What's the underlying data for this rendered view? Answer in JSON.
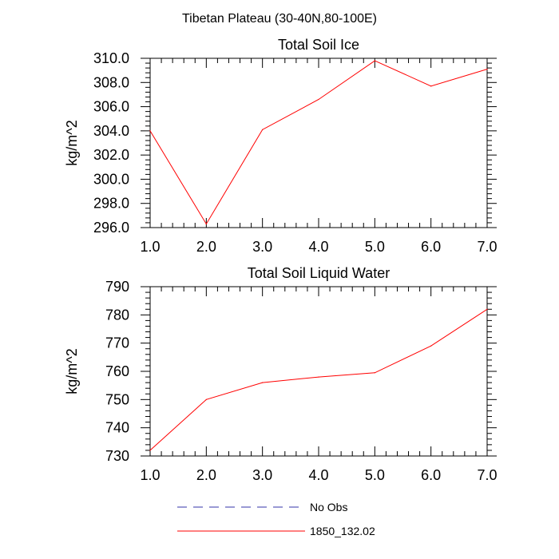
{
  "figure_title": "Tibetan Plateau (30-40N,80-100E)",
  "colors": {
    "model_line": "#ff0000",
    "obs_line": "#3333aa",
    "axis": "#000000"
  },
  "legend": {
    "entries": [
      {
        "label": "No Obs",
        "style": "dashed",
        "color": "#3333aa"
      },
      {
        "label": "1850_132.02",
        "style": "solid",
        "color": "#ff0000"
      }
    ]
  },
  "chart_data": [
    {
      "type": "line",
      "title": "Total Soil Ice",
      "ylabel": "kg/m^2",
      "xlabel": "",
      "xlim": [
        1,
        7
      ],
      "ylim": [
        296,
        310
      ],
      "xticks": [
        1,
        2,
        3,
        4,
        5,
        6,
        7
      ],
      "xtick_labels": [
        "1.0",
        "2.0",
        "3.0",
        "4.0",
        "5.0",
        "6.0",
        "7.0"
      ],
      "yticks": [
        296,
        298,
        300,
        302,
        304,
        306,
        308,
        310
      ],
      "ytick_labels": [
        "296.0",
        "298.0",
        "300.0",
        "302.0",
        "304.0",
        "306.0",
        "308.0",
        "310.0"
      ],
      "yminor_step": 0.4,
      "grid": false,
      "series": [
        {
          "name": "1850_132.02",
          "x": [
            1,
            2,
            3,
            4,
            5,
            6,
            7
          ],
          "y": [
            304.0,
            296.3,
            304.1,
            306.6,
            309.8,
            307.7,
            309.1
          ]
        }
      ]
    },
    {
      "type": "line",
      "title": "Total Soil Liquid Water",
      "ylabel": "kg/m^2",
      "xlabel": "",
      "xlim": [
        1,
        7
      ],
      "ylim": [
        730,
        790
      ],
      "xticks": [
        1,
        2,
        3,
        4,
        5,
        6,
        7
      ],
      "xtick_labels": [
        "1.0",
        "2.0",
        "3.0",
        "4.0",
        "5.0",
        "6.0",
        "7.0"
      ],
      "yticks": [
        730,
        740,
        750,
        760,
        770,
        780,
        790
      ],
      "ytick_labels": [
        "730",
        "740",
        "750",
        "760",
        "770",
        "780",
        "790"
      ],
      "yminor_step": 2,
      "grid": false,
      "series": [
        {
          "name": "1850_132.02",
          "x": [
            1,
            2,
            3,
            4,
            5,
            6,
            7
          ],
          "y": [
            732.0,
            750.0,
            756.0,
            758.0,
            759.5,
            769.0,
            782.0
          ]
        }
      ]
    }
  ]
}
